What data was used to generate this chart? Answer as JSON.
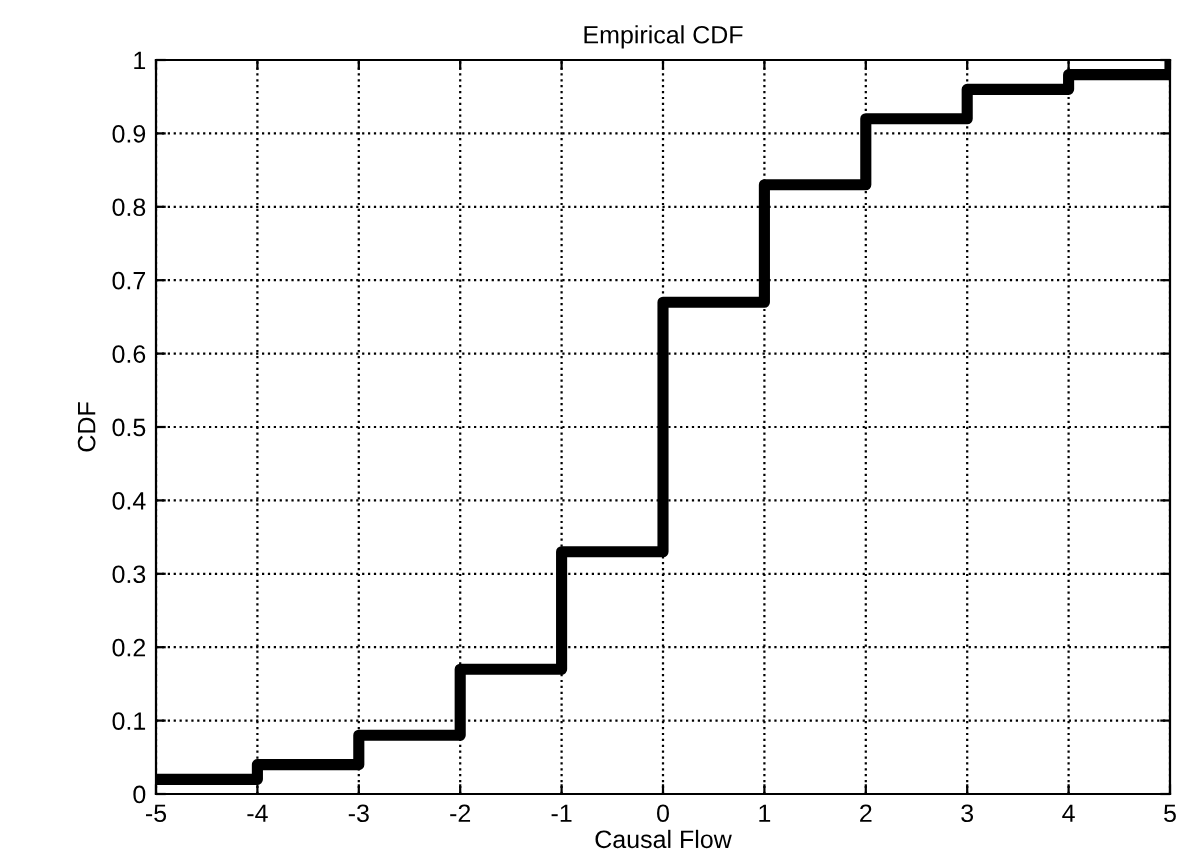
{
  "chart_data": {
    "type": "step",
    "title": "Empirical CDF",
    "xlabel": "Causal Flow",
    "ylabel": "CDF",
    "x": [
      -5,
      -4,
      -3,
      -2,
      -1,
      0,
      1,
      2,
      3,
      4,
      5
    ],
    "series": [
      {
        "color": "#000000",
        "values": [
          0.02,
          0.04,
          0.08,
          0.17,
          0.33,
          0.67,
          0.83,
          0.92,
          0.96,
          0.98,
          1.0
        ]
      }
    ],
    "xlim": [
      -5,
      5
    ],
    "xticks": [
      -5,
      -4,
      -3,
      -2,
      -1,
      0,
      1,
      2,
      3,
      4,
      5
    ],
    "ylim": [
      0,
      1
    ],
    "yticks": [
      0,
      0.1,
      0.2,
      0.3,
      0.4,
      0.5,
      0.6,
      0.7,
      0.8,
      0.9,
      1
    ],
    "grid": true,
    "line_style": "solid",
    "marker": "none",
    "legend": false
  }
}
